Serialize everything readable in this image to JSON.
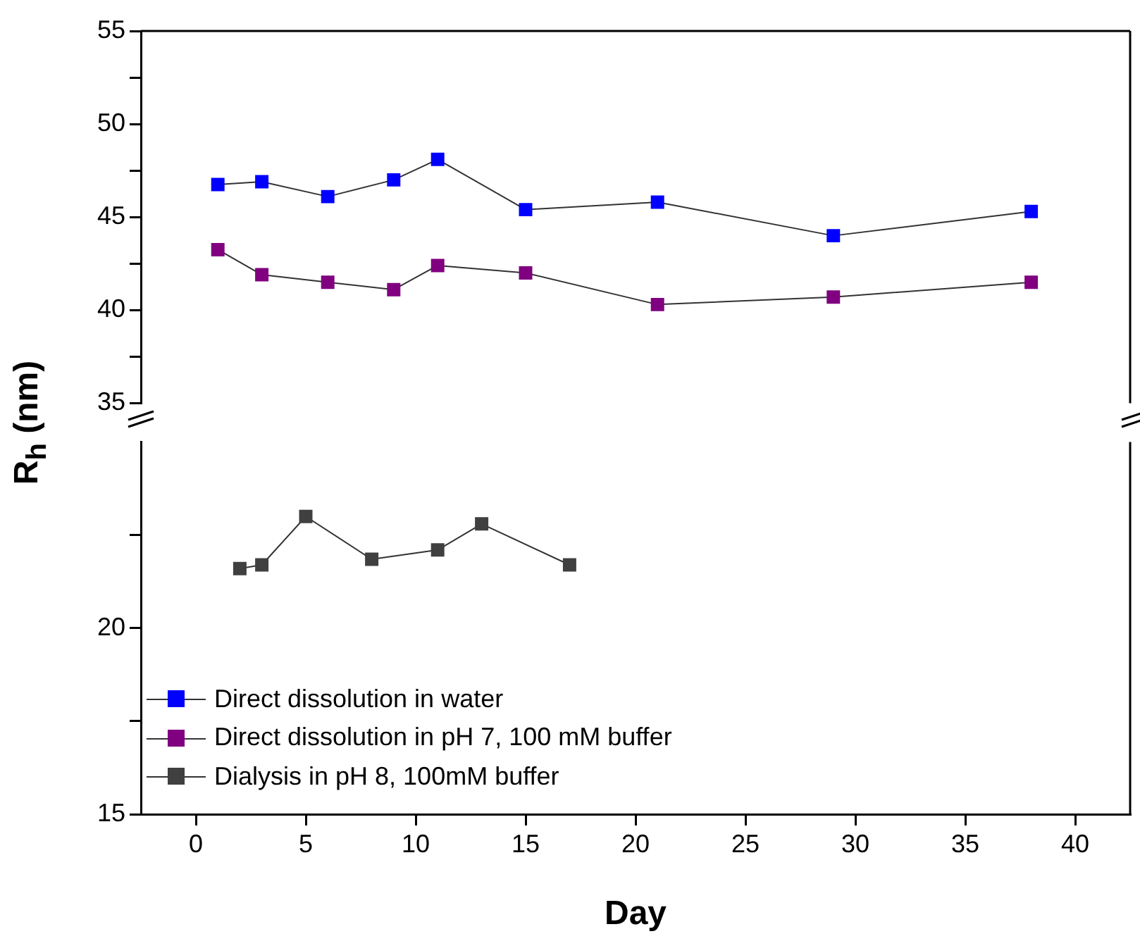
{
  "chart_data": [
    {
      "type": "line",
      "xlim": [
        -2.5,
        42.5
      ],
      "ylim": [
        35,
        55
      ],
      "yticks": [
        35,
        {
          "value": 37.5,
          "label": null
        },
        40,
        {
          "value": 42.5,
          "label": null
        },
        45,
        {
          "value": 47.5,
          "label": null
        },
        50,
        {
          "value": 52.5,
          "label": null
        },
        55
      ],
      "tick_labels": "y",
      "grid": false,
      "marker": "square",
      "legend": "bottom left",
      "x": [
        1,
        3,
        6,
        9,
        11,
        15,
        21,
        29,
        38
      ],
      "series": [
        {
          "name": "Direct dissolution in water",
          "color": "#0000ff",
          "values": [
            46.75,
            46.9,
            46.1,
            47.0,
            48.1,
            45.4,
            45.8,
            44.0,
            45.3
          ]
        },
        {
          "name": "Direct dissolution in pH 7, 100 mM buffer",
          "color": "#800080",
          "values": [
            43.25,
            41.9,
            41.5,
            41.1,
            42.4,
            42.0,
            40.3,
            40.7,
            41.5
          ]
        }
      ]
    },
    {
      "type": "line",
      "xlabel": "Day",
      "ylabel": "R$_{h}$ (nm)",
      "xlim": [
        -2.5,
        42.5
      ],
      "xticks": [
        0,
        5,
        10,
        15,
        20,
        25,
        30,
        35,
        40
      ],
      "ylim": [
        15,
        25
      ],
      "yticks": [
        15,
        {
          "value": 17.5,
          "label": null
        },
        20,
        {
          "value": 22.5,
          "label": null
        }
      ],
      "grid": false,
      "marker": "square",
      "legend": "bottom left",
      "x": [
        2,
        3,
        5,
        8,
        11,
        13,
        17
      ],
      "series": [
        {
          "name": "Dialysis in pH 8, 100mM buffer",
          "color": "#404040",
          "values": [
            21.6,
            21.7,
            23.0,
            21.85,
            22.1,
            22.8,
            21.7
          ]
        }
      ]
    }
  ]
}
